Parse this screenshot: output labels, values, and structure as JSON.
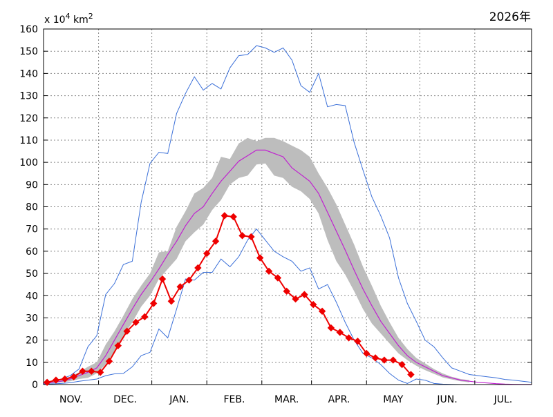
{
  "chart_data": {
    "type": "line",
    "year_label": "2026年",
    "unit_label": {
      "prefix": "x 10",
      "exp": "4",
      "unit": "km",
      "unit_exp": "2"
    },
    "ylim": [
      0,
      160
    ],
    "y_ticks": [
      0,
      10,
      20,
      30,
      40,
      50,
      60,
      70,
      80,
      90,
      100,
      110,
      120,
      130,
      140,
      150,
      160
    ],
    "xlim": [
      0,
      275
    ],
    "months": [
      {
        "label": "NOV.",
        "start": 0,
        "end": 31
      },
      {
        "label": "DEC.",
        "start": 31,
        "end": 61
      },
      {
        "label": "JAN.",
        "start": 61,
        "end": 92
      },
      {
        "label": "FEB.",
        "start": 92,
        "end": 123
      },
      {
        "label": "MAR.",
        "start": 123,
        "end": 151
      },
      {
        "label": "APR.",
        "start": 151,
        "end": 182
      },
      {
        "label": "MAY",
        "start": 182,
        "end": 212
      },
      {
        "label": "JUN.",
        "start": 212,
        "end": 243
      },
      {
        "label": "JUL.",
        "start": 243,
        "end": 275
      }
    ],
    "grid": true,
    "colors": {
      "max": "#3a6fd8",
      "min": "#3a6fd8",
      "mean": "#c020d0",
      "band": "#bdbdbd",
      "current": "#ee0000"
    },
    "series": [
      {
        "role": "max",
        "x": [
          0,
          5,
          10,
          15,
          20,
          25,
          30,
          35,
          40,
          45,
          50,
          55,
          60,
          65,
          70,
          75,
          80,
          85,
          90,
          95,
          100,
          105,
          110,
          115,
          120,
          125,
          130,
          135,
          140,
          145,
          150,
          155,
          160,
          165,
          170,
          175,
          180,
          185,
          190,
          195,
          200,
          205,
          210,
          215,
          220,
          225,
          230,
          235,
          240,
          245,
          250,
          255,
          260,
          265,
          270,
          275
        ],
        "y": [
          1,
          1.5,
          2.5,
          4,
          7,
          17,
          22,
          40.5,
          45.5,
          54,
          55.5,
          82,
          99.5,
          104.5,
          104,
          122,
          131,
          138.5,
          132.5,
          135.5,
          133,
          142.5,
          148,
          148.5,
          152.5,
          151.5,
          149.5,
          151.5,
          146,
          134.5,
          131.5,
          140,
          125,
          126,
          125.5,
          109,
          96.5,
          84.5,
          76,
          66,
          48,
          36.5,
          28.5,
          20,
          17,
          12,
          7.5,
          6,
          4.5,
          4,
          3.5,
          3,
          2.3,
          2,
          1.5,
          1
        ]
      },
      {
        "role": "min",
        "x": [
          0,
          5,
          10,
          15,
          20,
          25,
          30,
          35,
          40,
          45,
          50,
          55,
          60,
          65,
          70,
          75,
          80,
          85,
          90,
          95,
          100,
          105,
          110,
          115,
          120,
          125,
          130,
          135,
          140,
          145,
          150,
          155,
          160,
          165,
          170,
          175,
          180,
          185,
          190,
          195,
          200,
          205,
          210,
          215,
          220,
          225,
          230,
          235,
          240,
          245,
          250,
          255,
          260,
          265,
          270,
          275
        ],
        "y": [
          0.2,
          0.3,
          0.5,
          0.8,
          1.5,
          2,
          2.5,
          4,
          4.8,
          5,
          8,
          13,
          14.5,
          25,
          21,
          34,
          47.5,
          47,
          50.5,
          50.5,
          56.5,
          53,
          57.5,
          65,
          70,
          65,
          60,
          57.5,
          55.5,
          51,
          52.5,
          43,
          45,
          37,
          28,
          20,
          14,
          12,
          9,
          5,
          2,
          0.5,
          2.5,
          2,
          0.5,
          0.2,
          0.1,
          0,
          0,
          0,
          0,
          0,
          0,
          0,
          0,
          0
        ]
      },
      {
        "role": "mean",
        "x": [
          0,
          5,
          10,
          15,
          20,
          25,
          30,
          35,
          40,
          45,
          50,
          55,
          60,
          65,
          70,
          75,
          80,
          85,
          90,
          95,
          100,
          105,
          110,
          115,
          120,
          125,
          130,
          135,
          140,
          145,
          150,
          155,
          160,
          165,
          170,
          175,
          180,
          185,
          190,
          195,
          200,
          205,
          210,
          215,
          220,
          225,
          230,
          235,
          240,
          245,
          250,
          255,
          260,
          265,
          270,
          275
        ],
        "y": [
          0.5,
          1,
          1.5,
          2.5,
          4,
          5.5,
          7.5,
          13,
          20,
          27,
          34,
          40.5,
          46,
          52,
          58.5,
          64.5,
          71.5,
          77,
          80,
          86,
          91.5,
          96,
          100.5,
          103,
          105.5,
          105.5,
          104,
          102.5,
          97.5,
          94.5,
          91.5,
          86,
          77.5,
          69,
          60.5,
          51.5,
          43,
          35.5,
          28.5,
          23,
          17.5,
          13,
          10,
          8,
          6,
          4,
          3,
          2,
          1.5,
          1,
          0.7,
          0.4,
          0.2,
          0.1,
          0.05,
          0
        ]
      },
      {
        "role": "band_upper",
        "x": [
          0,
          5,
          10,
          15,
          20,
          25,
          30,
          35,
          40,
          45,
          50,
          55,
          60,
          65,
          70,
          75,
          80,
          85,
          90,
          95,
          100,
          105,
          110,
          115,
          120,
          125,
          130,
          135,
          140,
          145,
          150,
          155,
          160,
          165,
          170,
          175,
          180,
          185,
          190,
          195,
          200,
          205,
          210,
          215,
          220,
          225,
          230,
          235,
          240
        ],
        "y": [
          0.8,
          1.5,
          2,
          3.5,
          5.5,
          8,
          10,
          18,
          24,
          31,
          38.5,
          44.5,
          50,
          59.5,
          60,
          71,
          78,
          86,
          88.5,
          93,
          102.5,
          101.5,
          108.5,
          111,
          109.5,
          111,
          111,
          109.5,
          107.5,
          105.5,
          102.5,
          95,
          88.5,
          81,
          72,
          63,
          53,
          44.5,
          35.5,
          28,
          21,
          16,
          12,
          9.5,
          7,
          5,
          3.5,
          2.5,
          2
        ]
      },
      {
        "role": "band_lower",
        "x": [
          0,
          5,
          10,
          15,
          20,
          25,
          30,
          35,
          40,
          45,
          50,
          55,
          60,
          65,
          70,
          75,
          80,
          85,
          90,
          95,
          100,
          105,
          110,
          115,
          120,
          125,
          130,
          135,
          140,
          145,
          150,
          155,
          160,
          165,
          170,
          175,
          180,
          185,
          190,
          195,
          200,
          205,
          210,
          215,
          220,
          225,
          230,
          235,
          240
        ],
        "y": [
          0.3,
          0.5,
          1,
          1.5,
          2.5,
          3,
          5,
          9,
          15,
          22,
          28,
          35,
          40,
          47.5,
          52,
          56.5,
          64.5,
          68.5,
          72,
          78.5,
          83,
          90,
          93,
          94,
          99,
          99.5,
          94,
          93,
          89,
          87,
          83.5,
          77,
          65,
          55.5,
          49.5,
          42,
          34,
          27.5,
          23,
          18.5,
          14,
          11,
          8.5,
          6.5,
          4.8,
          3.2,
          2.3,
          1.5,
          1
        ]
      },
      {
        "role": "current",
        "name": "2026年",
        "x": [
          2,
          7,
          12,
          17,
          22,
          27,
          32,
          37,
          42,
          47,
          52,
          57,
          62,
          67,
          72,
          77,
          82,
          87,
          92,
          97,
          102,
          107,
          112,
          117,
          122,
          127,
          132,
          137,
          142,
          147,
          152,
          157,
          162,
          167,
          172,
          177,
          182,
          187,
          192,
          197,
          202,
          207,
          212
        ],
        "y": [
          1,
          2,
          2.5,
          3.5,
          6,
          6,
          5.5,
          10.5,
          17.5,
          24,
          28,
          30.5,
          36.5,
          47.5,
          37.5,
          44,
          47,
          52.5,
          59,
          64.5,
          76,
          75.5,
          67,
          66.5,
          57,
          51,
          48,
          42,
          38.5,
          40.5,
          36,
          33,
          25.5,
          23.5,
          21,
          19.5,
          14,
          12,
          11,
          11,
          9,
          4.5,
          null
        ]
      }
    ]
  }
}
